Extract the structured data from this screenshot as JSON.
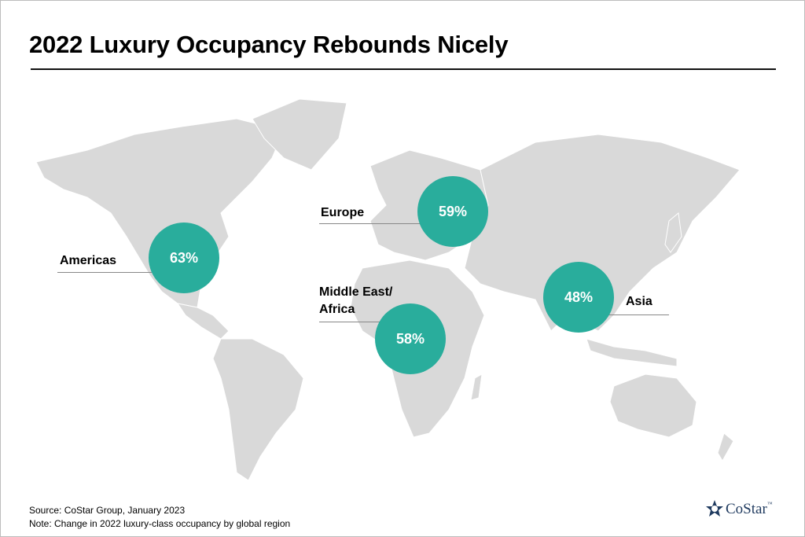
{
  "header": {
    "title": "2022 Luxury Occupancy Rebounds Nicely"
  },
  "regions": [
    {
      "name": "Americas",
      "value": "63%"
    },
    {
      "name": "Europe",
      "value": "59%"
    },
    {
      "name": "Middle East/\nAfrica",
      "value": "58%"
    },
    {
      "name": "Asia",
      "value": "48%"
    }
  ],
  "footer": {
    "source": "Source: CoStar Group, January 2023",
    "note": "Note: Change in 2022 luxury-class occupancy by global region",
    "logo": "CoStar",
    "trademark": "™"
  }
}
